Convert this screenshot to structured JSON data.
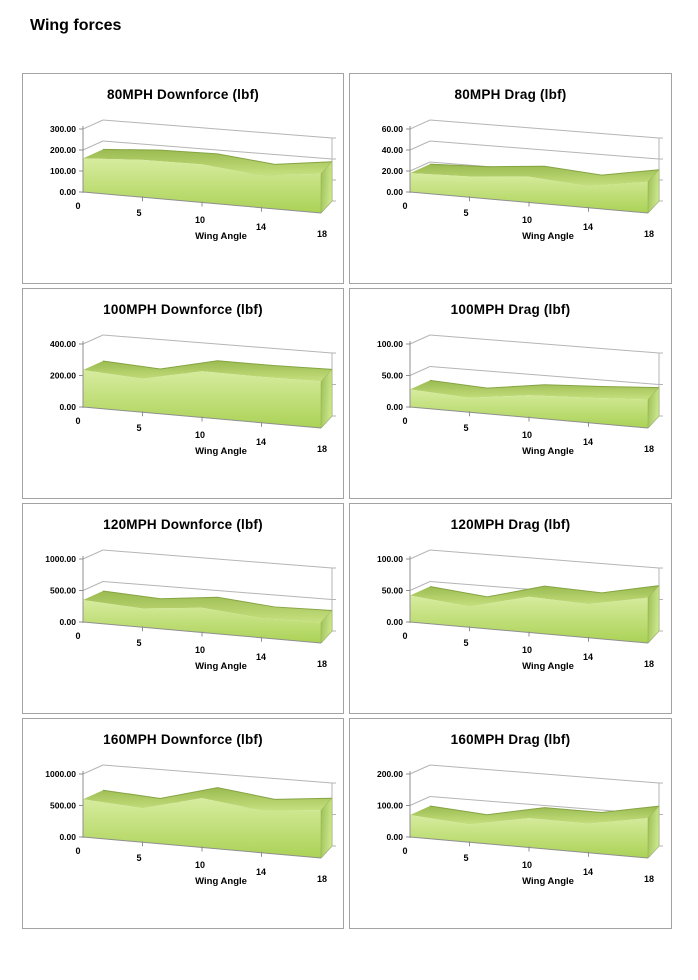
{
  "page": {
    "title": "Wing forces"
  },
  "colors": {
    "area_face_top": "#d7ec9f",
    "area_face_bottom": "#abd256",
    "ribbon_dark": "#9aba50",
    "ribbon_light": "#c6e07f",
    "ribbon_edge": "#86a443",
    "side_dark": "#9cbf55",
    "side_light": "#cbe68c",
    "gridline": "#b5b5b5",
    "axis": "#8f8f8f",
    "panel_border": "#a3a3a3",
    "text": "#000000"
  },
  "chart_data": [
    {
      "type": "area",
      "title": "80MPH Downforce (lbf)",
      "xlabel": "Wing Angle",
      "categories": [
        "0",
        "5",
        "10",
        "14",
        "18"
      ],
      "values": [
        160,
        180,
        185,
        158,
        195
      ],
      "y_ticks": [
        "0.00",
        "100.00",
        "200.00",
        "300.00"
      ],
      "ylim": [
        0,
        300
      ]
    },
    {
      "type": "area",
      "title": "80MPH Drag (lbf)",
      "xlabel": "Wing Angle",
      "categories": [
        "0",
        "5",
        "10",
        "14",
        "18"
      ],
      "values": [
        18,
        20,
        25,
        21,
        31
      ],
      "y_ticks": [
        "0.00",
        "20.00",
        "40.00",
        "60.00"
      ],
      "ylim": [
        0,
        60
      ]
    },
    {
      "type": "area",
      "title": "100MPH Downforce (lbf)",
      "xlabel": "Wing Angle",
      "categories": [
        "0",
        "5",
        "10",
        "14",
        "18"
      ],
      "values": [
        235,
        215,
        300,
        300,
        308
      ],
      "y_ticks": [
        "0.00",
        "200.00",
        "400.00"
      ],
      "ylim": [
        0,
        400
      ]
    },
    {
      "type": "area",
      "title": "100MPH Drag (lbf)",
      "xlabel": "Wing Angle",
      "categories": [
        "0",
        "5",
        "10",
        "14",
        "18"
      ],
      "values": [
        28,
        23,
        36,
        41,
        47
      ],
      "y_ticks": [
        "0.00",
        "50.00",
        "100.00"
      ],
      "ylim": [
        0,
        100
      ]
    },
    {
      "type": "area",
      "title": "120MPH Downforce (lbf)",
      "xlabel": "Wing Angle",
      "categories": [
        "0",
        "5",
        "10",
        "14",
        "18"
      ],
      "values": [
        350,
        300,
        400,
        320,
        340
      ],
      "y_ticks": [
        "0.00",
        "500.00",
        "1000.00"
      ],
      "ylim": [
        0,
        1000
      ]
    },
    {
      "type": "area",
      "title": "120MPH Drag (lbf)",
      "xlabel": "Wing Angle",
      "categories": [
        "0",
        "5",
        "10",
        "14",
        "18"
      ],
      "values": [
        42,
        33,
        58,
        55,
        75
      ],
      "y_ticks": [
        "0.00",
        "50.00",
        "100.00"
      ],
      "ylim": [
        0,
        100
      ]
    },
    {
      "type": "area",
      "title": "160MPH Downforce (lbf)",
      "xlabel": "Wing Angle",
      "categories": [
        "0",
        "5",
        "10",
        "14",
        "18"
      ],
      "values": [
        600,
        545,
        800,
        690,
        790
      ],
      "y_ticks": [
        "0.00",
        "500.00",
        "1000.00"
      ],
      "ylim": [
        0,
        1000
      ]
    },
    {
      "type": "area",
      "title": "160MPH Drag (lbf)",
      "xlabel": "Wing Angle",
      "categories": [
        "0",
        "5",
        "10",
        "14",
        "18"
      ],
      "values": [
        70,
        57,
        95,
        95,
        132
      ],
      "y_ticks": [
        "0.00",
        "100.00",
        "200.00"
      ],
      "ylim": [
        0,
        200
      ]
    }
  ]
}
